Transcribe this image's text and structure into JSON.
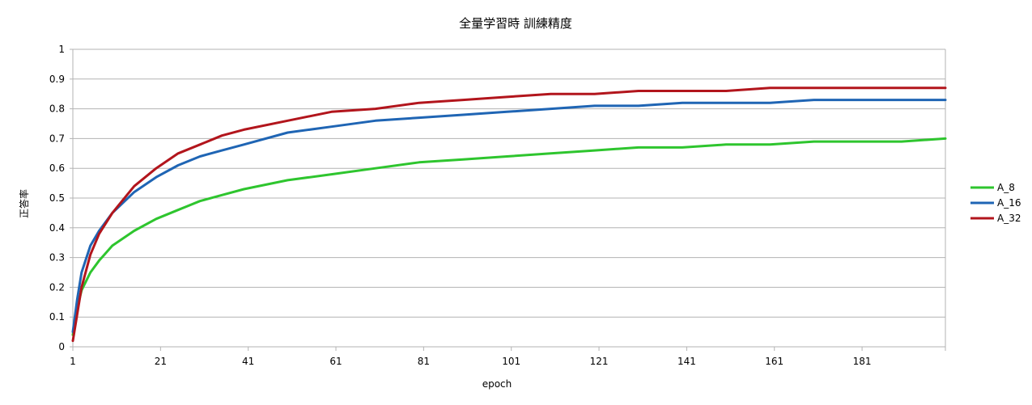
{
  "chart_data": {
    "type": "line",
    "title": "全量学習時 訓練精度",
    "xlabel": "epoch",
    "ylabel": "正答率",
    "xlim": [
      1,
      200
    ],
    "ylim": [
      0,
      1
    ],
    "x_ticks": [
      "1",
      "21",
      "41",
      "61",
      "81",
      "101",
      "121",
      "141",
      "161",
      "181"
    ],
    "y_ticks": [
      "0",
      "0.1",
      "0.2",
      "0.3",
      "0.4",
      "0.5",
      "0.6",
      "0.7",
      "0.8",
      "0.9",
      "1"
    ],
    "grid": "horizontal",
    "legend_position": "right",
    "series": [
      {
        "name": "A_8",
        "color": "#2ec52e",
        "x": [
          1,
          2,
          3,
          5,
          7,
          10,
          15,
          20,
          25,
          30,
          35,
          40,
          50,
          60,
          70,
          80,
          90,
          100,
          110,
          120,
          130,
          140,
          150,
          160,
          170,
          180,
          190,
          200
        ],
        "values": [
          0.04,
          0.13,
          0.19,
          0.25,
          0.29,
          0.34,
          0.39,
          0.43,
          0.46,
          0.49,
          0.51,
          0.53,
          0.56,
          0.58,
          0.6,
          0.62,
          0.63,
          0.64,
          0.65,
          0.66,
          0.67,
          0.67,
          0.68,
          0.68,
          0.69,
          0.69,
          0.69,
          0.7
        ]
      },
      {
        "name": "A_16",
        "color": "#1f65b4",
        "x": [
          1,
          2,
          3,
          5,
          7,
          10,
          15,
          20,
          25,
          30,
          35,
          40,
          50,
          60,
          70,
          80,
          90,
          100,
          110,
          120,
          130,
          140,
          150,
          160,
          170,
          180,
          190,
          200
        ],
        "values": [
          0.05,
          0.16,
          0.25,
          0.34,
          0.39,
          0.45,
          0.52,
          0.57,
          0.61,
          0.64,
          0.66,
          0.68,
          0.72,
          0.74,
          0.76,
          0.77,
          0.78,
          0.79,
          0.8,
          0.81,
          0.81,
          0.82,
          0.82,
          0.82,
          0.83,
          0.83,
          0.83,
          0.83
        ]
      },
      {
        "name": "A_32",
        "color": "#b2151c",
        "x": [
          1,
          2,
          3,
          5,
          7,
          10,
          15,
          20,
          25,
          30,
          35,
          40,
          50,
          60,
          70,
          80,
          90,
          100,
          110,
          120,
          130,
          140,
          150,
          160,
          170,
          180,
          190,
          200
        ],
        "values": [
          0.02,
          0.11,
          0.2,
          0.31,
          0.38,
          0.45,
          0.54,
          0.6,
          0.65,
          0.68,
          0.71,
          0.73,
          0.76,
          0.79,
          0.8,
          0.82,
          0.83,
          0.84,
          0.85,
          0.85,
          0.86,
          0.86,
          0.86,
          0.87,
          0.87,
          0.87,
          0.87,
          0.87
        ]
      }
    ]
  }
}
